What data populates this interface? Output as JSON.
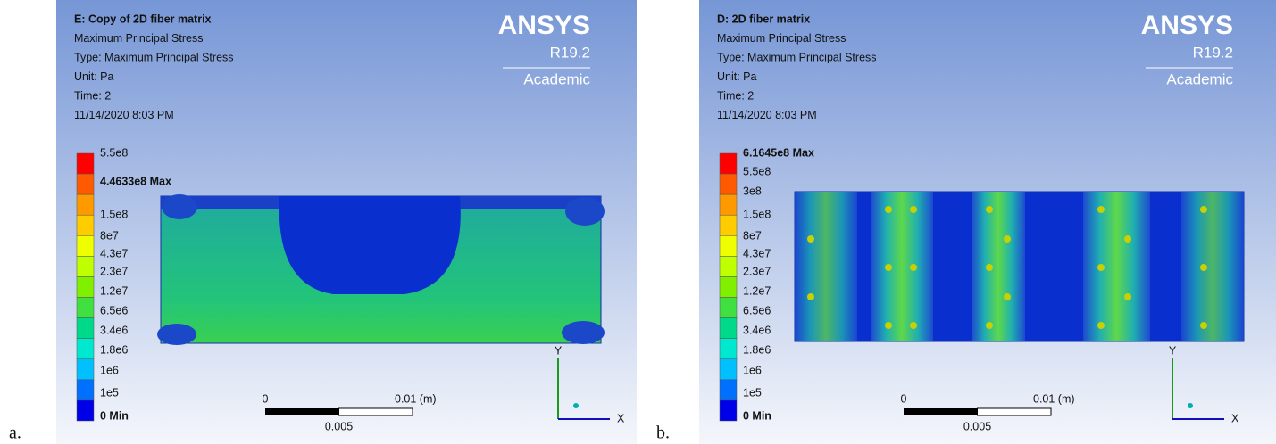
{
  "panels": [
    {
      "letter": "a.",
      "header": [
        "E: Copy of 2D fiber matrix",
        "Maximum Principal Stress",
        "Type: Maximum Principal Stress",
        "Unit: Pa",
        "Time: 2",
        "11/14/2020 8:03 PM"
      ],
      "logo": {
        "brand": "ANSYS",
        "version": "R19.2",
        "edition": "Academic"
      },
      "legend": [
        "5.5e8",
        "4.4633e8 Max",
        "1.5e8",
        "8e7",
        "4.3e7",
        "2.3e7",
        "1.2e7",
        "6.5e6",
        "3.4e6",
        "1.8e6",
        "1e6",
        "1e5",
        "0 Min"
      ],
      "scale": {
        "start": "0",
        "end": "0.01 (m)",
        "mid": "0.005"
      },
      "triad": {
        "y": "Y",
        "x": "X"
      }
    },
    {
      "letter": "b.",
      "header": [
        "D: 2D fiber matrix",
        "Maximum Principal Stress",
        "Type: Maximum Principal Stress",
        "Unit: Pa",
        "Time: 2",
        "11/14/2020 8:03 PM"
      ],
      "logo": {
        "brand": "ANSYS",
        "version": "R19.2",
        "edition": "Academic"
      },
      "legend": [
        "6.1645e8 Max",
        "5.5e8",
        "3e8",
        "1.5e8",
        "8e7",
        "4.3e7",
        "2.3e7",
        "1.2e7",
        "6.5e6",
        "3.4e6",
        "1.8e6",
        "1e6",
        "1e5",
        "0 Min"
      ],
      "scale": {
        "start": "0",
        "end": "0.01 (m)",
        "mid": "0.005"
      },
      "triad": {
        "y": "Y",
        "x": "X"
      }
    }
  ]
}
